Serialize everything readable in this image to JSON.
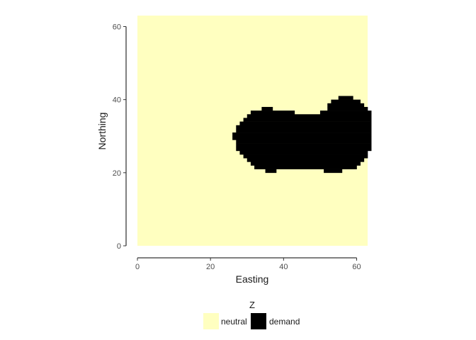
{
  "chart_data": {
    "type": "heatmap",
    "xlabel": "Easting",
    "ylabel": "Northing",
    "xlim": [
      0,
      63
    ],
    "ylim": [
      0,
      63
    ],
    "x_ticks": [
      0,
      20,
      40,
      60
    ],
    "y_ticks": [
      0,
      20,
      40,
      60
    ],
    "legend": {
      "title": "Z",
      "position": "bottom",
      "entries": [
        {
          "label": "neutral",
          "color": "#FFFFC0"
        },
        {
          "label": "demand",
          "color": "#000000"
        }
      ]
    },
    "background_level": "neutral",
    "demand_region": {
      "level": "demand",
      "rows": [
        {
          "y": 40,
          "x_start": 55,
          "x_end": 58
        },
        {
          "y": 39,
          "x_start": 53,
          "x_end": 60
        },
        {
          "y": 38,
          "x_start": 52,
          "x_end": 61
        },
        {
          "y": 37,
          "x_start": 34,
          "x_end": 36,
          "x_start2": 52,
          "x_end2": 62
        },
        {
          "y": 36,
          "x_start": 31,
          "x_end": 42,
          "x_start2": 50,
          "x_end2": 63
        },
        {
          "y": 35,
          "x_start": 30,
          "x_end": 63
        },
        {
          "y": 34,
          "x_start": 29,
          "x_end": 63
        },
        {
          "y": 33,
          "x_start": 28,
          "x_end": 63
        },
        {
          "y": 32,
          "x_start": 27,
          "x_end": 63
        },
        {
          "y": 31,
          "x_start": 27,
          "x_end": 63
        },
        {
          "y": 30,
          "x_start": 26,
          "x_end": 63
        },
        {
          "y": 29,
          "x_start": 26,
          "x_end": 63
        },
        {
          "y": 28,
          "x_start": 27,
          "x_end": 63
        },
        {
          "y": 27,
          "x_start": 27,
          "x_end": 63
        },
        {
          "y": 26,
          "x_start": 27,
          "x_end": 63
        },
        {
          "y": 25,
          "x_start": 28,
          "x_end": 62
        },
        {
          "y": 24,
          "x_start": 29,
          "x_end": 62
        },
        {
          "y": 23,
          "x_start": 30,
          "x_end": 61
        },
        {
          "y": 22,
          "x_start": 31,
          "x_end": 60
        },
        {
          "y": 21,
          "x_start": 32,
          "x_end": 59
        },
        {
          "y": 20,
          "x_start": 35,
          "x_end": 37,
          "x_start2": 51,
          "x_end2": 55
        }
      ]
    }
  }
}
